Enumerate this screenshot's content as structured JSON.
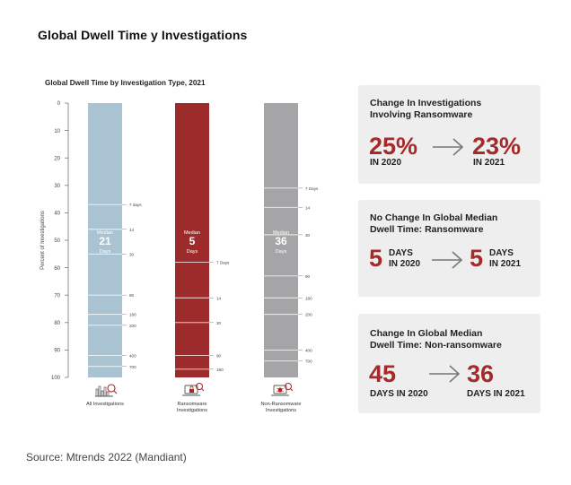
{
  "page": {
    "title": "Global Dwell Time y Investigations",
    "source": "Source: Mtrends 2022 (Mandiant)"
  },
  "colors": {
    "bar_all": "#a9c3d3",
    "bar_ransomware": "#9e2b2b",
    "bar_non_ransomware": "#a5a5a7",
    "accent": "#a52a2a",
    "panel_bg": "#eeeeee"
  },
  "chart_data": {
    "type": "bar",
    "title": "Global Dwell Time by Investigation Type, 2021",
    "ylabel": "Percent of Investigations",
    "ylim": [
      0,
      100
    ],
    "yticks": [
      0,
      10,
      20,
      30,
      40,
      50,
      60,
      70,
      80,
      90,
      100
    ],
    "categories": [
      {
        "key": "all",
        "label": [
          "All Investigations"
        ],
        "icon": "chart-icon",
        "median_label": "Median",
        "median_value": "21",
        "median_unit": "Days"
      },
      {
        "key": "ransomware",
        "label": [
          "Ransomware",
          "Investigations"
        ],
        "icon": "laptop-lock-icon",
        "median_label": "Median",
        "median_value": "5",
        "median_unit": "Days"
      },
      {
        "key": "non_ransomware",
        "label": [
          "Non-Ransomware",
          "Investigations"
        ],
        "icon": "laptop-bug-icon",
        "median_label": "Median",
        "median_value": "36",
        "median_unit": "Days"
      }
    ],
    "values": [
      100,
      100,
      100
    ],
    "thresholds": [
      [
        {
          "pct": 37,
          "label": "7 days"
        },
        {
          "pct": 46,
          "label": "14"
        },
        {
          "pct": 55,
          "label": "30"
        },
        {
          "pct": 70,
          "label": "90"
        },
        {
          "pct": 77,
          "label": "180"
        },
        {
          "pct": 81,
          "label": "200"
        },
        {
          "pct": 92,
          "label": "400"
        },
        {
          "pct": 96,
          "label": "700"
        }
      ],
      [
        {
          "pct": 58,
          "label": "7 Days"
        },
        {
          "pct": 71,
          "label": "14"
        },
        {
          "pct": 80,
          "label": "30"
        },
        {
          "pct": 92,
          "label": "90"
        },
        {
          "pct": 97,
          "label": "180"
        }
      ],
      [
        {
          "pct": 31,
          "label": "7 Days"
        },
        {
          "pct": 38,
          "label": "14"
        },
        {
          "pct": 48,
          "label": "30"
        },
        {
          "pct": 63,
          "label": "90"
        },
        {
          "pct": 71,
          "label": "180"
        },
        {
          "pct": 77,
          "label": "200"
        },
        {
          "pct": 90,
          "label": "400"
        },
        {
          "pct": 94,
          "label": "700"
        }
      ]
    ]
  },
  "panels": [
    {
      "title": [
        "Change In Investigations",
        "Involving Ransomware"
      ],
      "from_big": "25%",
      "from_small": [
        "IN 2020"
      ],
      "to_big": "23%",
      "to_small": [
        "IN 2021"
      ]
    },
    {
      "title": [
        "No Change In Global Median",
        "Dwell Time: Ransomware"
      ],
      "from_big": "5",
      "from_small": [
        "DAYS",
        "IN 2020"
      ],
      "to_big": "5",
      "to_small": [
        "DAYS",
        "IN 2021"
      ]
    },
    {
      "title": [
        "Change In Global Median",
        "Dwell Time: Non-ransomware"
      ],
      "from_big": "45",
      "from_small": [
        "DAYS IN 2020"
      ],
      "to_big": "36",
      "to_small": [
        "DAYS IN 2021"
      ]
    }
  ]
}
